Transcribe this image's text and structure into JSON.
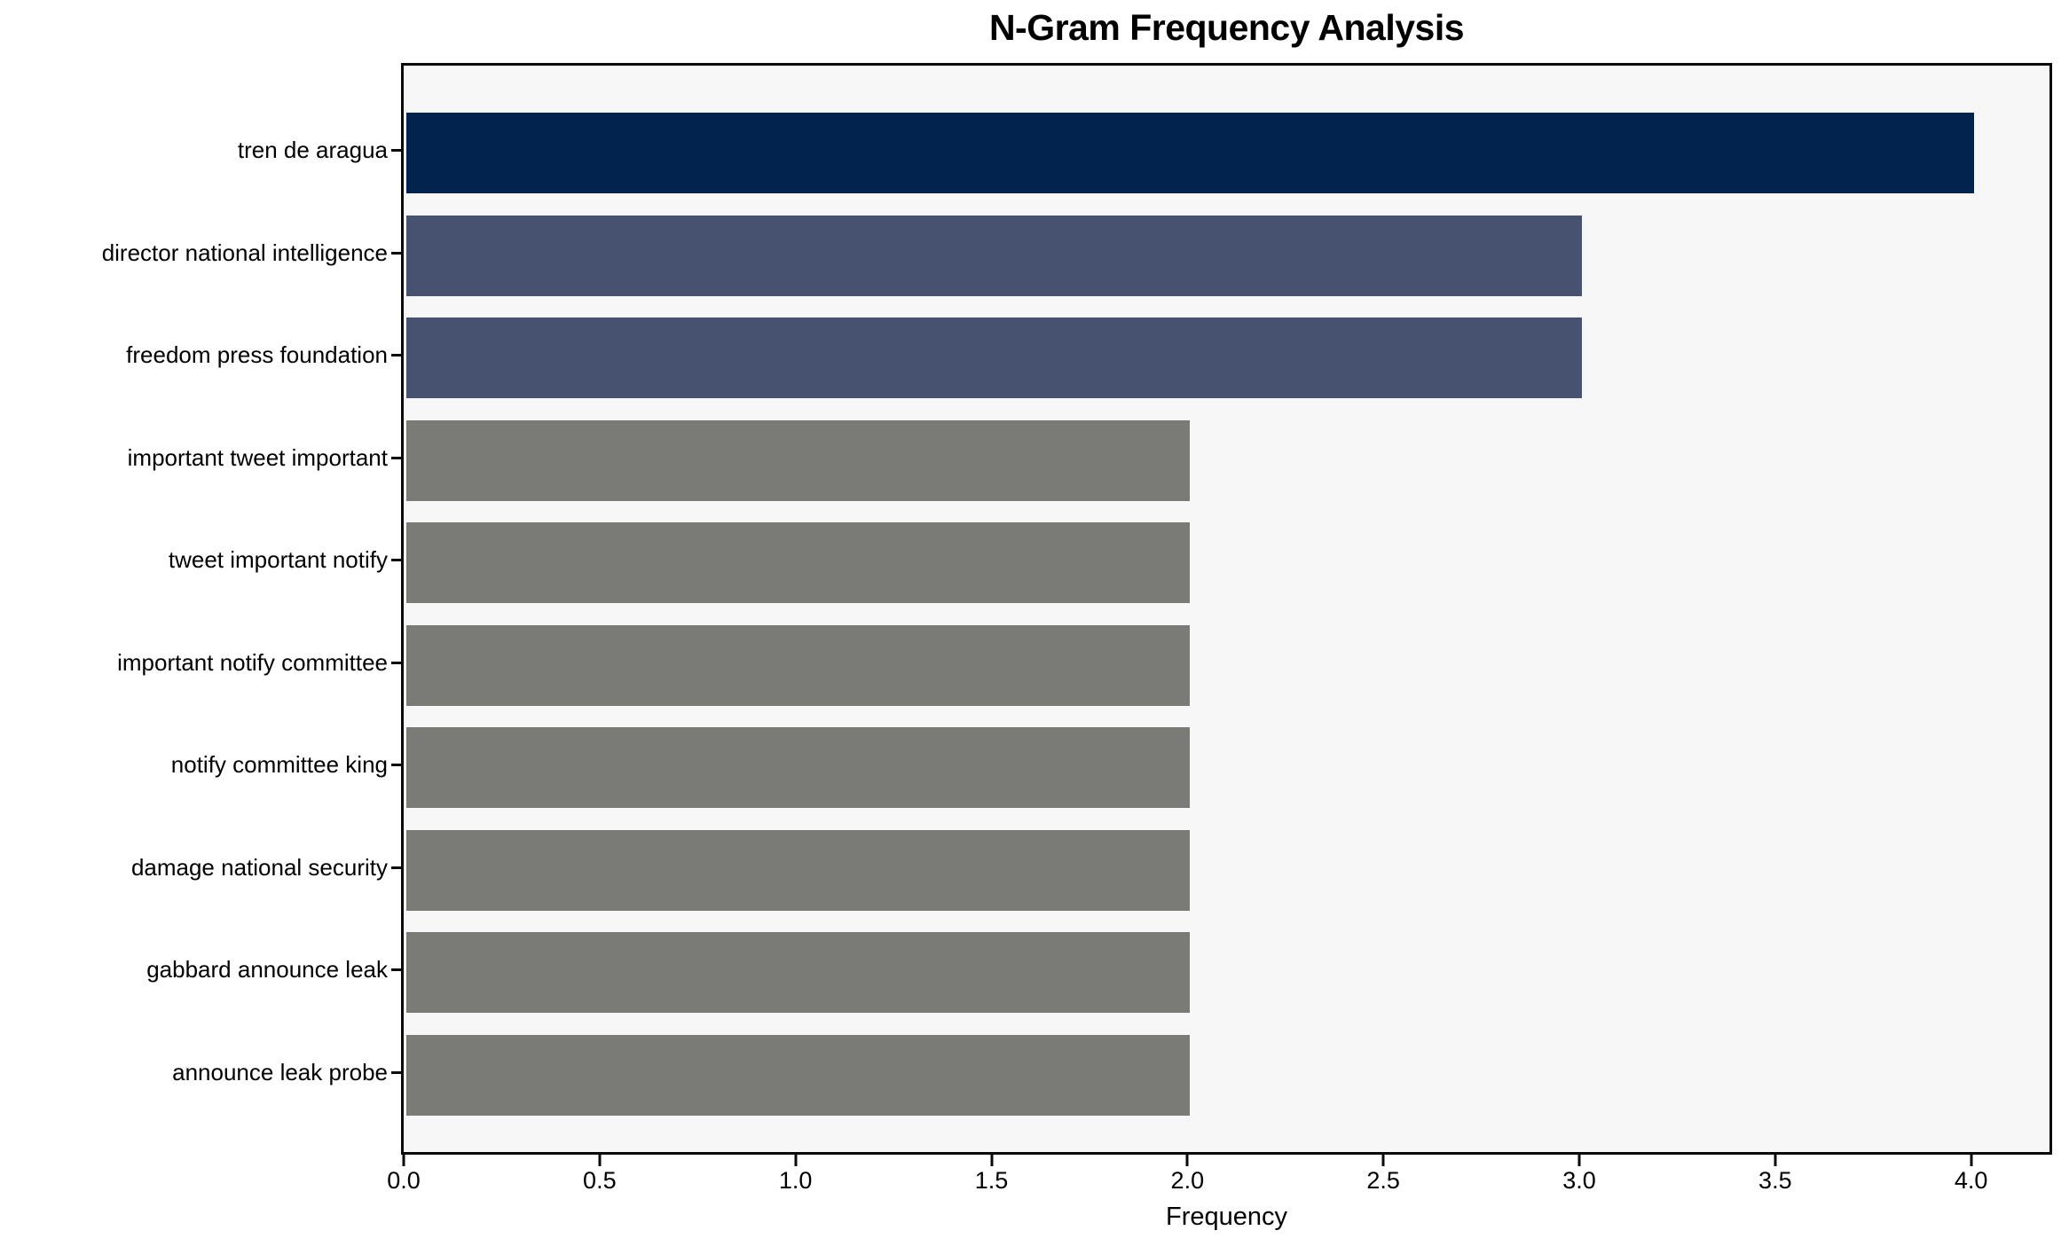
{
  "chart_data": {
    "type": "bar",
    "orientation": "horizontal",
    "title": "N-Gram Frequency Analysis",
    "xlabel": "Frequency",
    "ylabel": "",
    "categories": [
      "tren de aragua",
      "director national intelligence",
      "freedom press foundation",
      "important tweet important",
      "tweet important notify",
      "important notify committee",
      "notify committee king",
      "damage national security",
      "gabbard announce leak",
      "announce leak probe"
    ],
    "values": [
      4,
      3,
      3,
      2,
      2,
      2,
      2,
      2,
      2,
      2
    ],
    "bar_colors": [
      "#01234e",
      "#465270",
      "#465270",
      "#7a7a77",
      "#7a7a77",
      "#7a7a77",
      "#7a7a77",
      "#7a7a77",
      "#7a7a77",
      "#7a7a77"
    ],
    "xlim": [
      0,
      4.2
    ],
    "xticks": [
      0.0,
      0.5,
      1.0,
      1.5,
      2.0,
      2.5,
      3.0,
      3.5,
      4.0
    ],
    "xtick_labels": [
      "0.0",
      "0.5",
      "1.0",
      "1.5",
      "2.0",
      "2.5",
      "3.0",
      "3.5",
      "4.0"
    ],
    "grid": false,
    "legend": "none",
    "plot_background": "#f7f7f7",
    "figure_background": "#ffffff",
    "spine_color": "#0a0a0a"
  }
}
